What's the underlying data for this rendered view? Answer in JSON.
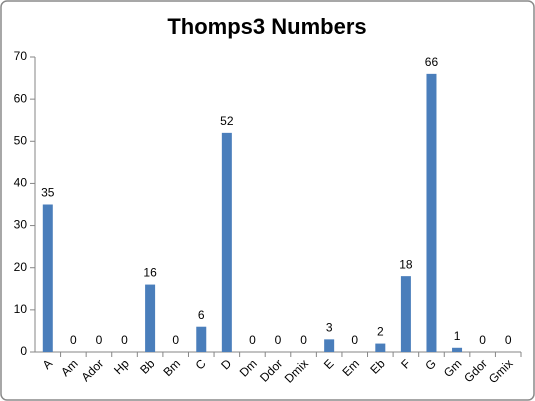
{
  "chart_data": {
    "type": "bar",
    "title": "Thomps3 Numbers",
    "categories": [
      "A",
      "Am",
      "Ador",
      "Hp",
      "Bb",
      "Bm",
      "C",
      "D",
      "Dm",
      "Ddor",
      "Dmix",
      "E",
      "Em",
      "Eb",
      "F",
      "G",
      "Gm",
      "Gdor",
      "Gmix"
    ],
    "values": [
      35,
      0,
      0,
      0,
      16,
      0,
      6,
      52,
      0,
      0,
      0,
      3,
      0,
      2,
      18,
      66,
      1,
      0,
      0
    ],
    "color": "#4a7ebb",
    "ylim": [
      0,
      70
    ],
    "yticks": [
      0,
      10,
      20,
      30,
      40,
      50,
      60,
      70
    ],
    "grid": false,
    "data_labels": true
  }
}
